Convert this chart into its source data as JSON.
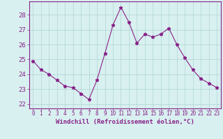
{
  "x": [
    0,
    1,
    2,
    3,
    4,
    5,
    6,
    7,
    8,
    9,
    10,
    11,
    12,
    13,
    14,
    15,
    16,
    17,
    18,
    19,
    20,
    21,
    22,
    23
  ],
  "y": [
    24.9,
    24.3,
    24.0,
    23.6,
    23.2,
    23.1,
    22.7,
    22.3,
    23.6,
    25.4,
    27.3,
    28.5,
    27.5,
    26.1,
    26.7,
    26.5,
    26.7,
    27.1,
    26.0,
    25.1,
    24.3,
    23.7,
    23.4,
    23.1
  ],
  "line_color": "#882288",
  "marker": "*",
  "marker_size": 3.5,
  "bg_color": "#d8f0f0",
  "grid_color": "#b0d4d4",
  "xlabel": "Windchill (Refroidissement éolien,°C)",
  "xlabel_color": "#882288",
  "ylabel_ticks": [
    22,
    23,
    24,
    25,
    26,
    27,
    28
  ],
  "xlim": [
    -0.5,
    23.5
  ],
  "ylim": [
    21.7,
    28.9
  ],
  "tick_color": "#882288",
  "tick_label_color": "#882288",
  "spine_color": "#882288",
  "xtick_fontsize": 5.5,
  "ytick_fontsize": 6.5,
  "xlabel_fontsize": 6.5
}
